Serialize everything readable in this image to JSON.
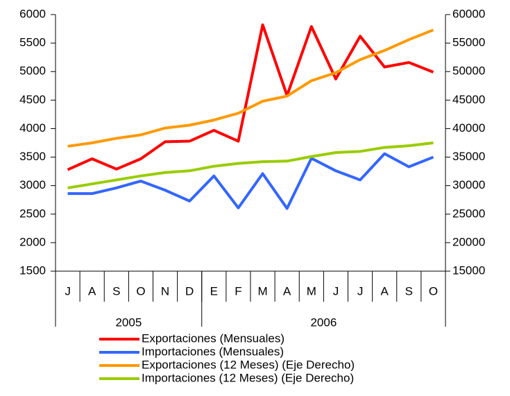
{
  "chart_data": {
    "type": "line",
    "categories": [
      "J",
      "A",
      "S",
      "O",
      "N",
      "D",
      "E",
      "F",
      "M",
      "A",
      "M",
      "J",
      "J",
      "A",
      "S",
      "O"
    ],
    "category_groups": [
      {
        "label": "2005",
        "count": 6
      },
      {
        "label": "2006",
        "count": 10
      }
    ],
    "ylim": [
      1500,
      6000
    ],
    "yticks": [
      1500,
      2000,
      2500,
      3000,
      3500,
      4000,
      4500,
      5000,
      5500,
      6000
    ],
    "y2lim": [
      15000,
      60000
    ],
    "y2ticks": [
      15000,
      20000,
      25000,
      30000,
      35000,
      40000,
      45000,
      50000,
      55000,
      60000
    ],
    "legend": "bottom",
    "series": [
      {
        "name": "Exportaciones (Mensuales)",
        "color": "#ff0000",
        "values": [
          3280,
          3470,
          3290,
          3470,
          3770,
          3780,
          3970,
          3780,
          5820,
          4580,
          5790,
          4870,
          5620,
          5080,
          5160,
          4990
        ]
      },
      {
        "name": "Importaciones (Mensuales)",
        "color": "#3366ff",
        "values": [
          2860,
          2860,
          2960,
          3080,
          2920,
          2730,
          3170,
          2610,
          3210,
          2600,
          3480,
          3260,
          3100,
          3560,
          3330,
          3500
        ]
      },
      {
        "name": "Exportaciones (12 Meses) (Eje Derecho)",
        "color": "#ff9900",
        "axis": "y2",
        "values": [
          36900,
          37500,
          38300,
          38900,
          40100,
          40600,
          41500,
          42700,
          44800,
          45700,
          48400,
          49800,
          52100,
          53700,
          55600,
          57300
        ]
      },
      {
        "name": "Importaciones (12 Meses) (Eje Derecho)",
        "color": "#99cc00",
        "axis": "y2",
        "values": [
          29600,
          30300,
          31000,
          31700,
          32300,
          32600,
          33400,
          33900,
          34200,
          34300,
          35100,
          35800,
          36000,
          36700,
          37000,
          37500
        ]
      }
    ]
  }
}
